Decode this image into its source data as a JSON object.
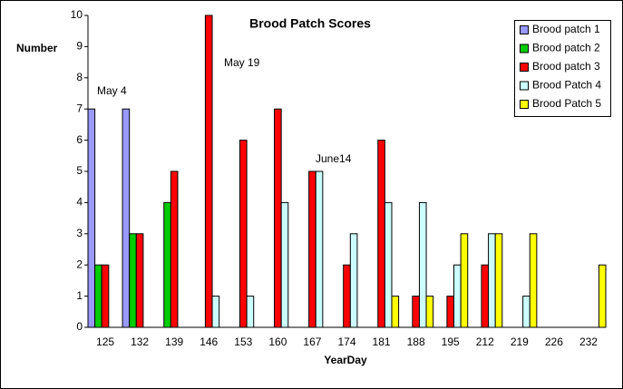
{
  "chart_data": {
    "type": "bar",
    "title": "Brood Patch Scores",
    "y_label": "Number",
    "x_label": "YearDay",
    "annotations": [
      "May 4",
      "May 19",
      "June14"
    ],
    "categories": [
      "125",
      "132",
      "139",
      "146",
      "153",
      "160",
      "167",
      "174",
      "181",
      "188",
      "195",
      "212",
      "219",
      "226",
      "232"
    ],
    "series": [
      {
        "name": "Brood patch 1",
        "color": "#9999ff",
        "values": [
          7,
          7,
          0,
          0,
          0,
          0,
          0,
          0,
          0,
          0,
          0,
          0,
          0,
          0,
          0
        ]
      },
      {
        "name": "Brood patch 2",
        "color": "#00cc00",
        "values": [
          2,
          3,
          4,
          0,
          0,
          0,
          0,
          0,
          0,
          0,
          0,
          0,
          0,
          0,
          0
        ]
      },
      {
        "name": "Brood patch 3",
        "color": "#ff0000",
        "values": [
          2,
          3,
          5,
          10,
          6,
          7,
          5,
          2,
          6,
          1,
          1,
          2,
          0,
          0,
          0
        ]
      },
      {
        "name": "Brood Patch 4",
        "color": "#ccffff",
        "values": [
          0,
          0,
          0,
          1,
          1,
          4,
          5,
          3,
          4,
          4,
          2,
          3,
          1,
          0,
          0
        ]
      },
      {
        "name": "Brood Patch 5",
        "color": "#ffff00",
        "values": [
          0,
          0,
          0,
          0,
          0,
          0,
          0,
          0,
          1,
          1,
          3,
          3,
          3,
          0,
          2
        ]
      }
    ],
    "ylim": [
      0,
      10
    ],
    "yticks": [
      0,
      1,
      2,
      3,
      4,
      5,
      6,
      7,
      8,
      9,
      10
    ],
    "grid": false,
    "legend": "top-right"
  }
}
